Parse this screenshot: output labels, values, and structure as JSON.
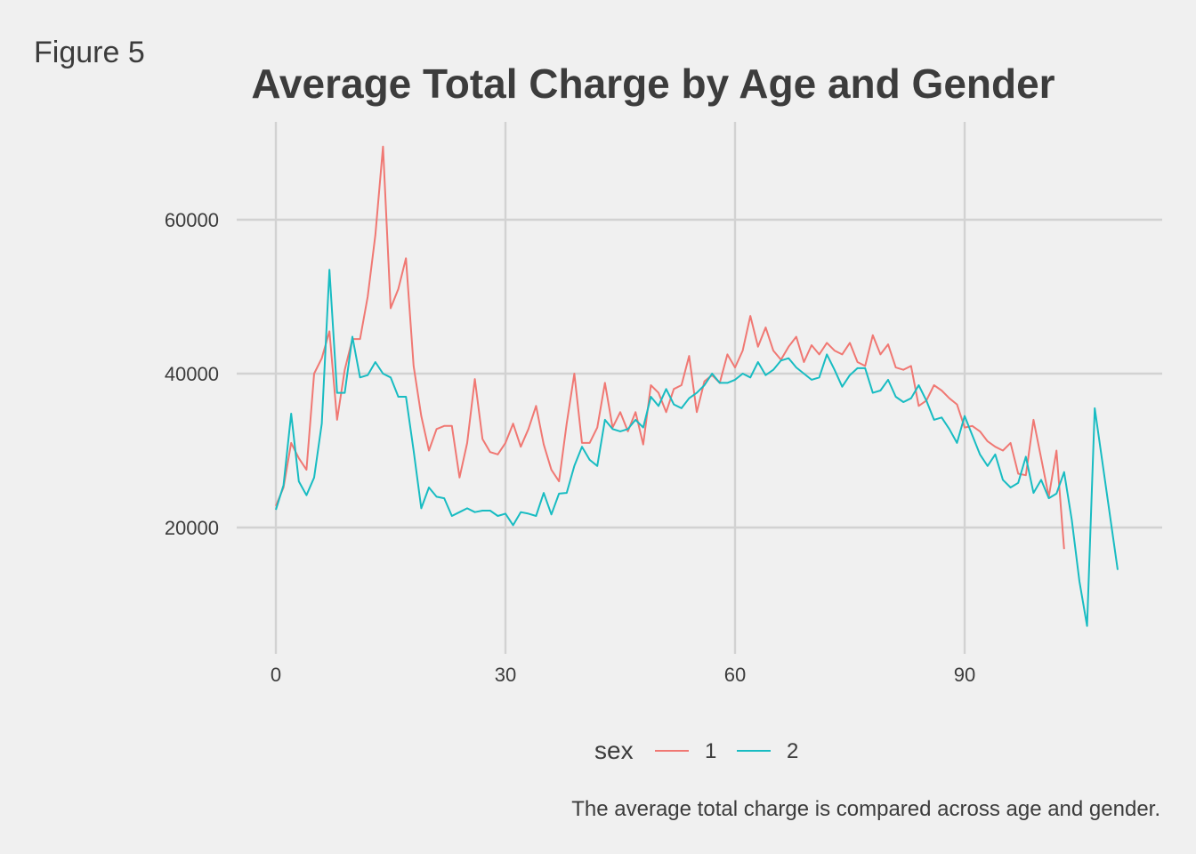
{
  "figure_label": "Figure 5",
  "caption": "The average total charge is compared across age and gender.",
  "colors": {
    "background": "#f0f0f0",
    "grid": "#d2d2d2",
    "series_1": "#f07873",
    "series_2": "#18bcc2",
    "text": "#3c3c3c"
  },
  "chart_data": {
    "type": "line",
    "title": "Average Total Charge by Age and Gender",
    "xlabel": "",
    "ylabel": "",
    "xlim": [
      -5,
      115
    ],
    "ylim": [
      5000,
      70000
    ],
    "x_ticks": [
      0,
      30,
      60,
      90
    ],
    "y_ticks": [
      20000,
      40000,
      60000
    ],
    "grid": true,
    "legend": {
      "title": "sex",
      "position": "bottom"
    },
    "series": [
      {
        "name": "1",
        "color": "#f07873",
        "x": [
          0,
          1,
          2,
          3,
          4,
          5,
          6,
          7,
          8,
          9,
          10,
          11,
          12,
          13,
          14,
          15,
          16,
          17,
          18,
          19,
          20,
          21,
          22,
          23,
          24,
          25,
          26,
          27,
          28,
          29,
          30,
          31,
          32,
          33,
          34,
          35,
          36,
          37,
          38,
          39,
          40,
          41,
          42,
          43,
          44,
          45,
          46,
          47,
          48,
          49,
          50,
          51,
          52,
          53,
          54,
          55,
          56,
          57,
          58,
          59,
          60,
          61,
          62,
          63,
          64,
          65,
          66,
          67,
          68,
          69,
          70,
          71,
          72,
          73,
          74,
          75,
          76,
          77,
          78,
          79,
          80,
          81,
          82,
          83,
          84,
          85,
          86,
          87,
          88,
          89,
          90,
          91,
          92,
          93,
          94,
          95,
          96,
          97,
          98,
          99,
          100,
          101,
          102,
          103
        ],
        "y": [
          22800,
          25200,
          31000,
          29000,
          27500,
          40000,
          42000,
          45500,
          34000,
          40500,
          44500,
          44500,
          50000,
          58000,
          69500,
          48500,
          51000,
          55000,
          41000,
          34500,
          30000,
          32800,
          33200,
          33200,
          26500,
          31000,
          39300,
          31500,
          29800,
          29500,
          31000,
          33500,
          30500,
          32800,
          35800,
          30800,
          27500,
          26000,
          33500,
          40000,
          31000,
          31000,
          33000,
          38800,
          33000,
          35000,
          32500,
          35000,
          30800,
          38500,
          37500,
          35000,
          38000,
          38500,
          42300,
          35000,
          39000,
          39800,
          38800,
          42500,
          40800,
          43000,
          47500,
          43500,
          46000,
          43000,
          41800,
          43500,
          44800,
          41500,
          43700,
          42500,
          44000,
          43000,
          42500,
          44000,
          41500,
          41000,
          45000,
          42500,
          43800,
          40800,
          40500,
          41000,
          35800,
          36500,
          38500,
          37800,
          36800,
          36000,
          33000,
          33200,
          32500,
          31200,
          30500,
          30000,
          31000,
          27000,
          26800,
          34000,
          29000,
          24000,
          30000,
          17200
        ]
      },
      {
        "name": "2",
        "color": "#18bcc2",
        "x": [
          0,
          1,
          2,
          3,
          4,
          5,
          6,
          7,
          8,
          9,
          10,
          11,
          12,
          13,
          14,
          15,
          16,
          17,
          18,
          19,
          20,
          21,
          22,
          23,
          24,
          25,
          26,
          27,
          28,
          29,
          30,
          31,
          32,
          33,
          34,
          35,
          36,
          37,
          38,
          39,
          40,
          41,
          42,
          43,
          44,
          45,
          46,
          47,
          48,
          49,
          50,
          51,
          52,
          53,
          54,
          55,
          56,
          57,
          58,
          59,
          60,
          61,
          62,
          63,
          64,
          65,
          66,
          67,
          68,
          69,
          70,
          71,
          72,
          73,
          74,
          75,
          76,
          77,
          78,
          79,
          80,
          81,
          82,
          83,
          84,
          85,
          86,
          87,
          88,
          89,
          90,
          91,
          92,
          93,
          94,
          95,
          96,
          97,
          98,
          99,
          100,
          101,
          102,
          103,
          104,
          105,
          106,
          107,
          110
        ],
        "y": [
          22300,
          25500,
          34800,
          26000,
          24200,
          26500,
          33500,
          53500,
          37500,
          37500,
          44800,
          39500,
          39800,
          41500,
          40000,
          39500,
          37000,
          37000,
          30000,
          22500,
          25200,
          24000,
          23800,
          21500,
          22000,
          22500,
          22000,
          22200,
          22200,
          21500,
          21800,
          20300,
          22000,
          21800,
          21500,
          24500,
          21700,
          24400,
          24500,
          28000,
          30500,
          28800,
          28000,
          34000,
          32800,
          32500,
          32800,
          34000,
          33000,
          37000,
          35800,
          38000,
          36000,
          35500,
          36800,
          37500,
          38500,
          40000,
          38800,
          38800,
          39200,
          40000,
          39500,
          41500,
          39800,
          40500,
          41700,
          42000,
          40800,
          40000,
          39200,
          39500,
          42500,
          40500,
          38300,
          39800,
          40700,
          40700,
          37500,
          37800,
          39200,
          37000,
          36300,
          36800,
          38500,
          36500,
          34000,
          34300,
          32800,
          31000,
          34500,
          32000,
          29500,
          28000,
          29500,
          26200,
          25200,
          25800,
          29200,
          24500,
          26200,
          23800,
          24400,
          27200,
          21000,
          13000,
          7200,
          35500,
          14500
        ]
      }
    ]
  }
}
